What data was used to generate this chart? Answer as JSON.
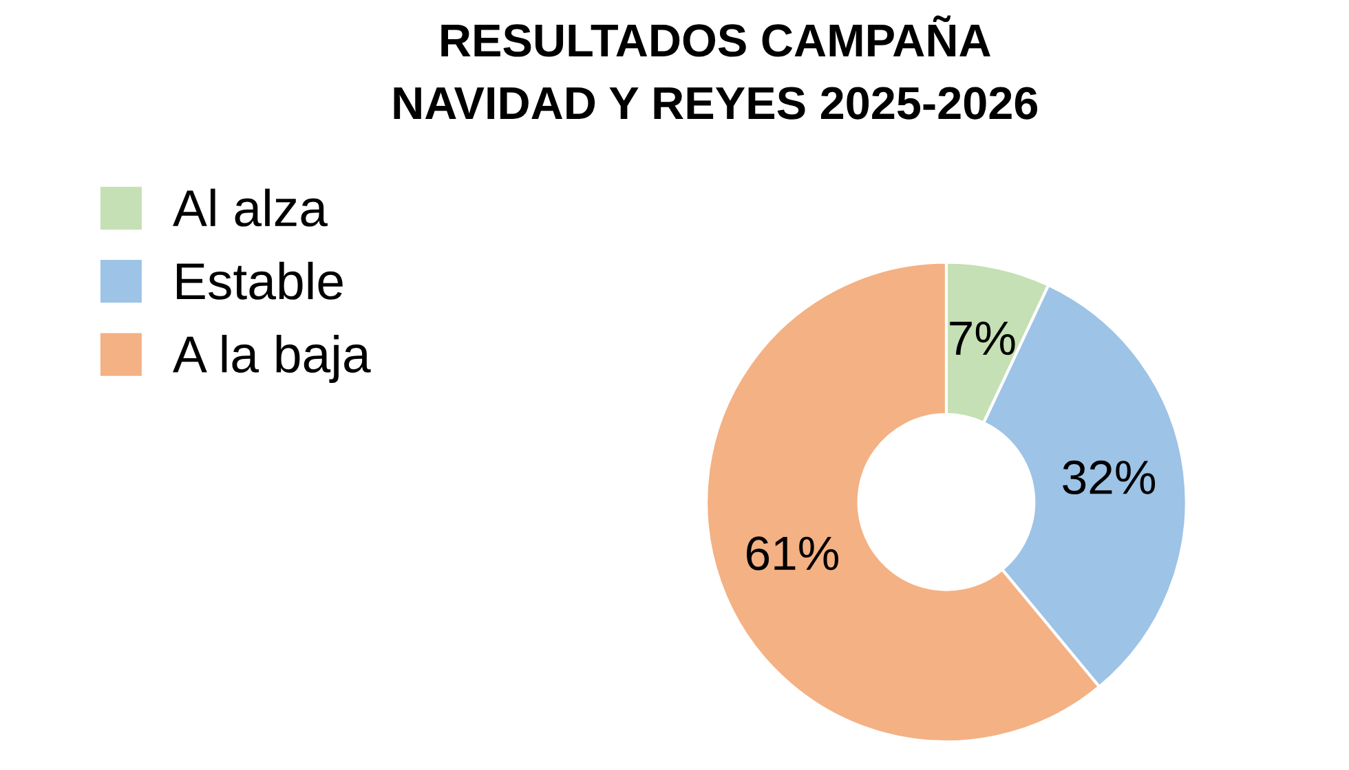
{
  "chart_data": {
    "type": "donut",
    "title": "RESULTADOS CAMPAÑA\nNAVIDAD Y REYES 2025-2026",
    "categories": [
      "Al alza",
      "Estable",
      "A la baja"
    ],
    "values": [
      7,
      32,
      61
    ],
    "colors": [
      "#c5e0b4",
      "#9dc3e6",
      "#f4b183"
    ],
    "value_labels": [
      "7%",
      "32%",
      "61%"
    ],
    "legend": "left"
  }
}
